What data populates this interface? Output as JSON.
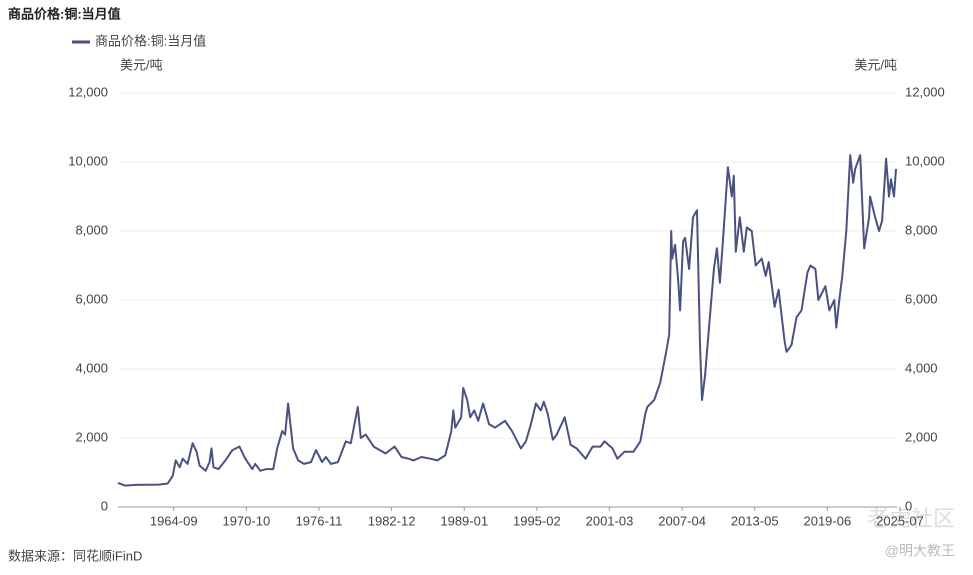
{
  "chart_data": {
    "type": "line",
    "title": "商品价格:铜:当月值",
    "y_unit": "美元/吨",
    "y2_unit": "美元/吨",
    "source": "数据来源：同花顺iFinD",
    "watermark": [
      "老虎社区",
      "@明大教王"
    ],
    "xlim": [
      "1960-01",
      "2025-04"
    ],
    "xticks": [
      "1964-09",
      "1970-10",
      "1976-11",
      "1982-12",
      "1989-01",
      "1995-02",
      "2001-03",
      "2007-04",
      "2013-05",
      "2019-06",
      "2025-07"
    ],
    "ylim": [
      0,
      12000
    ],
    "yticks": [
      0,
      {
        "value": 2000,
        "label": "2,000"
      },
      {
        "value": 4000,
        "label": "4,000"
      },
      {
        "value": 6000,
        "label": "6,000"
      },
      {
        "value": 8000,
        "label": "8,000"
      },
      {
        "value": 10000,
        "label": "10,000"
      },
      {
        "value": 12000,
        "label": "12,000"
      }
    ],
    "y2lim": [
      0,
      12000
    ],
    "y2ticks": [
      0,
      {
        "value": 2000,
        "label": "2,000"
      },
      {
        "value": 4000,
        "label": "4,000"
      },
      {
        "value": 6000,
        "label": "6,000"
      },
      {
        "value": 8000,
        "label": "8,000"
      },
      {
        "value": 10000,
        "label": "10,000"
      },
      {
        "value": 12000,
        "label": "12,000"
      }
    ],
    "grid": true,
    "x": [
      "1960-01",
      "1960-08",
      "1961-06",
      "1963-06",
      "1964-03",
      "1964-08",
      "1964-11",
      "1965-03",
      "1965-06",
      "1965-11",
      "1966-04",
      "1966-08",
      "1966-11",
      "1967-05",
      "1967-09",
      "1967-11",
      "1968-01",
      "1968-06",
      "1969-01",
      "1969-08",
      "1970-03",
      "1970-09",
      "1971-04",
      "1971-07",
      "1971-12",
      "1972-06",
      "1973-01",
      "1973-05",
      "1973-10",
      "1974-01",
      "1974-04",
      "1974-09",
      "1975-02",
      "1975-08",
      "1976-03",
      "1976-08",
      "1977-02",
      "1977-06",
      "1977-11",
      "1978-06",
      "1979-02",
      "1979-07",
      "1980-02",
      "1980-05",
      "1980-10",
      "1981-06",
      "1982-06",
      "1983-03",
      "1983-10",
      "1984-05",
      "1984-10",
      "1985-06",
      "1986-03",
      "1986-10",
      "1987-06",
      "1987-12",
      "1988-02",
      "1988-04",
      "1988-10",
      "1988-12",
      "1989-04",
      "1989-07",
      "1989-11",
      "1990-03",
      "1990-08",
      "1991-02",
      "1991-08",
      "1992-06",
      "1993-01",
      "1993-10",
      "1994-03",
      "1994-08",
      "1995-01",
      "1995-06",
      "1995-09",
      "1996-01",
      "1996-06",
      "1996-10",
      "1997-06",
      "1997-12",
      "1998-06",
      "1999-03",
      "1999-10",
      "2000-06",
      "2000-10",
      "2001-06",
      "2001-11",
      "2002-06",
      "2003-03",
      "2003-10",
      "2004-03",
      "2004-05",
      "2004-12",
      "2005-06",
      "2005-12",
      "2006-03",
      "2006-05",
      "2006-06",
      "2006-09",
      "2006-12",
      "2007-02",
      "2007-05",
      "2007-07",
      "2007-11",
      "2008-03",
      "2008-07",
      "2008-10",
      "2008-12",
      "2009-03",
      "2009-07",
      "2009-12",
      "2010-03",
      "2010-06",
      "2010-09",
      "2011-02",
      "2011-06",
      "2011-08",
      "2011-10",
      "2012-02",
      "2012-06",
      "2012-09",
      "2013-02",
      "2013-06",
      "2013-12",
      "2014-04",
      "2014-07",
      "2015-01",
      "2015-05",
      "2015-11",
      "2016-01",
      "2016-06",
      "2016-11",
      "2017-04",
      "2017-10",
      "2018-01",
      "2018-06",
      "2018-09",
      "2019-04",
      "2019-08",
      "2020-01",
      "2020-03",
      "2020-06",
      "2020-09",
      "2021-01",
      "2021-05",
      "2021-08",
      "2021-10",
      "2022-03",
      "2022-07",
      "2022-12",
      "2023-01",
      "2023-06",
      "2023-10",
      "2024-01",
      "2024-05",
      "2024-08",
      "2024-10",
      "2025-01",
      "2025-03"
    ],
    "series": [
      {
        "name": "商品价格:铜:当月值",
        "color": "#4a5282",
        "values": [
          700,
          620,
          640,
          650,
          680,
          900,
          1350,
          1150,
          1400,
          1250,
          1850,
          1600,
          1200,
          1050,
          1300,
          1700,
          1150,
          1100,
          1350,
          1650,
          1750,
          1400,
          1100,
          1250,
          1050,
          1100,
          1100,
          1700,
          2200,
          2100,
          3000,
          1700,
          1350,
          1250,
          1300,
          1650,
          1300,
          1450,
          1250,
          1300,
          1900,
          1850,
          2900,
          2000,
          2100,
          1750,
          1550,
          1750,
          1450,
          1400,
          1350,
          1450,
          1400,
          1350,
          1500,
          2200,
          2800,
          2300,
          2600,
          3450,
          3100,
          2600,
          2800,
          2500,
          3000,
          2400,
          2300,
          2500,
          2200,
          1700,
          1900,
          2400,
          3000,
          2800,
          3050,
          2700,
          1950,
          2100,
          2600,
          1800,
          1700,
          1400,
          1750,
          1750,
          1900,
          1700,
          1400,
          1600,
          1600,
          1900,
          2700,
          2900,
          3100,
          3600,
          4500,
          5000,
          8000,
          7200,
          7600,
          6600,
          5700,
          7700,
          7800,
          6900,
          8400,
          8600,
          4700,
          3100,
          3800,
          5200,
          6900,
          7500,
          6500,
          7700,
          9850,
          9000,
          9600,
          7400,
          8400,
          7400,
          8100,
          8000,
          7000,
          7200,
          6700,
          7100,
          5800,
          6300,
          4800,
          4500,
          4700,
          5500,
          5700,
          6800,
          7000,
          6900,
          6000,
          6400,
          5700,
          6000,
          5200,
          6000,
          6700,
          8000,
          10200,
          9400,
          9800,
          10200,
          7500,
          8400,
          9000,
          8400,
          8000,
          8300,
          10100,
          9000,
          9500,
          9000,
          9800
        ]
      }
    ]
  }
}
